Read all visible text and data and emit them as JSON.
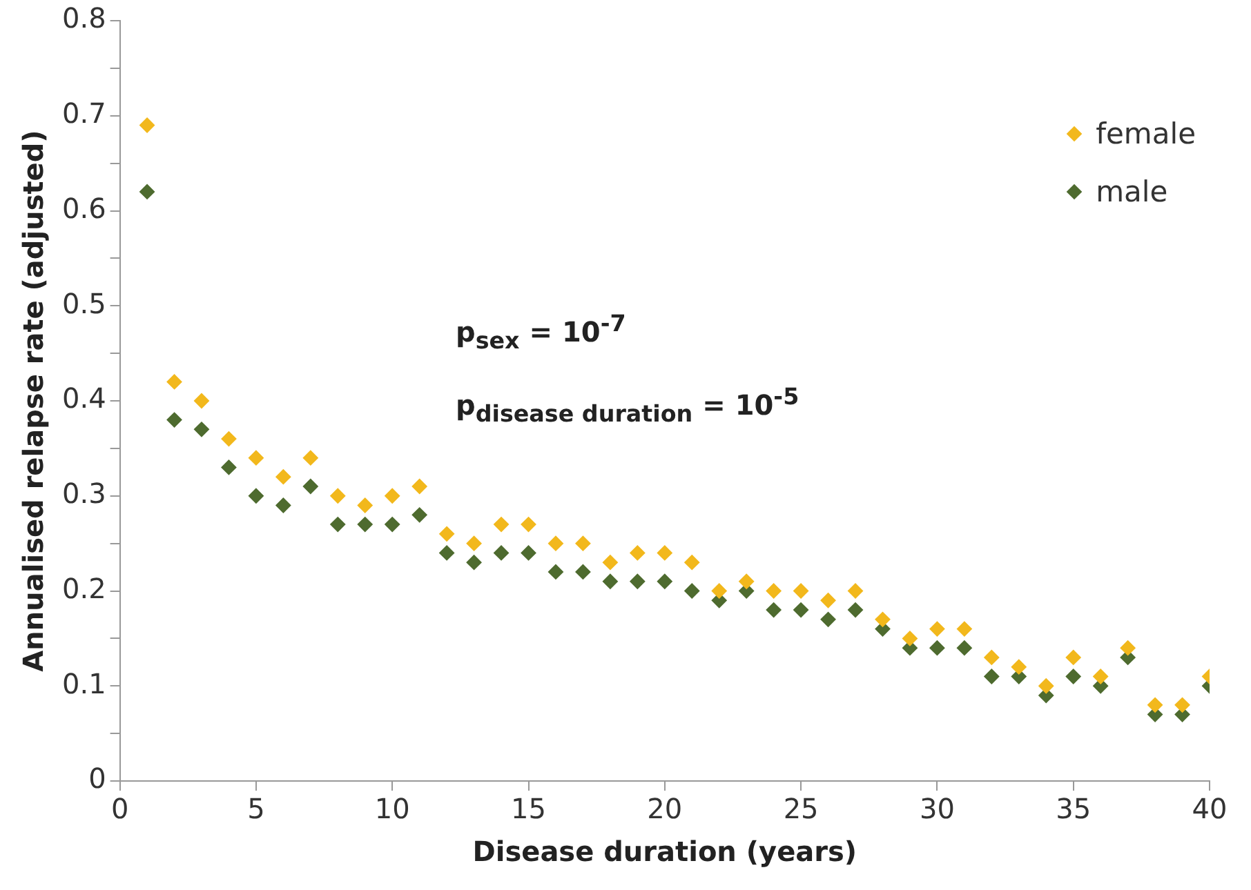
{
  "chart_data": {
    "type": "scatter",
    "xlabel": "Disease duration (years)",
    "ylabel": "Annualised relapse rate (adjusted)",
    "x": [
      1,
      2,
      3,
      4,
      5,
      6,
      7,
      8,
      9,
      10,
      11,
      12,
      13,
      14,
      15,
      16,
      17,
      18,
      19,
      20,
      21,
      22,
      23,
      24,
      25,
      26,
      27,
      28,
      29,
      30,
      31,
      32,
      33,
      34,
      35,
      36,
      37,
      38,
      39,
      40
    ],
    "series": [
      {
        "name": "female",
        "color": "#f2b81c",
        "values": [
          0.69,
          0.42,
          0.4,
          0.36,
          0.34,
          0.32,
          0.34,
          0.3,
          0.29,
          0.3,
          0.31,
          0.26,
          0.25,
          0.27,
          0.27,
          0.25,
          0.25,
          0.23,
          0.24,
          0.24,
          0.23,
          0.2,
          0.21,
          0.2,
          0.2,
          0.19,
          0.2,
          0.17,
          0.15,
          0.16,
          0.16,
          0.13,
          0.12,
          0.1,
          0.13,
          0.11,
          0.14,
          0.08,
          0.08,
          0.11
        ]
      },
      {
        "name": "male",
        "color": "#4e6b2f",
        "values": [
          0.62,
          0.38,
          0.37,
          0.33,
          0.3,
          0.29,
          0.31,
          0.27,
          0.27,
          0.27,
          0.28,
          0.24,
          0.23,
          0.24,
          0.24,
          0.22,
          0.22,
          0.21,
          0.21,
          0.21,
          0.2,
          0.19,
          0.2,
          0.18,
          0.18,
          0.17,
          0.18,
          0.16,
          0.14,
          0.14,
          0.14,
          0.11,
          0.11,
          0.09,
          0.11,
          0.1,
          0.13,
          0.07,
          0.07,
          0.1
        ]
      }
    ],
    "xlim": [
      0,
      40
    ],
    "xticks": [
      0,
      5,
      10,
      15,
      20,
      25,
      30,
      35,
      40
    ],
    "ylim": [
      0,
      0.8
    ],
    "yticks": [
      0,
      {
        "value": 0.05,
        "label": null
      },
      0.1,
      {
        "value": 0.15,
        "label": null
      },
      0.2,
      {
        "value": 0.25,
        "label": null
      },
      0.3,
      {
        "value": 0.35,
        "label": null
      },
      0.4,
      {
        "value": 0.45,
        "label": null
      },
      0.5,
      {
        "value": 0.55,
        "label": null
      },
      0.6,
      {
        "value": 0.65,
        "label": null
      },
      0.7,
      {
        "value": 0.75,
        "label": null
      },
      0.8
    ],
    "grid": false,
    "legend": "top right",
    "marker": "diamond",
    "annotations": [
      "p$_{sex}$ = 10$^{-7}$",
      "p$_{disease duration}$ = 10$^{-5}$"
    ]
  }
}
